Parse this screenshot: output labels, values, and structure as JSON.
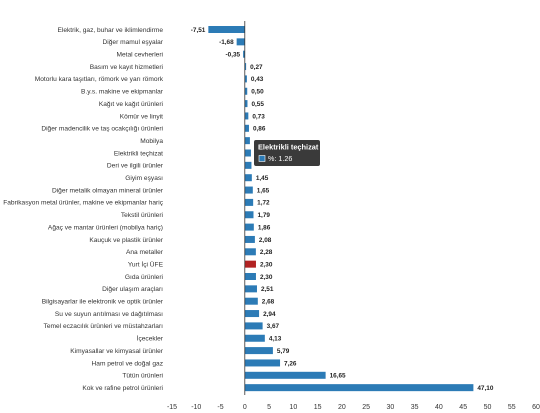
{
  "chart_data": {
    "type": "bar",
    "orientation": "horizontal",
    "categories": [
      "Elektrik, gaz, buhar ve iklimlendirme",
      "Diğer mamul eşyalar",
      "Metal cevherleri",
      "Basım ve kayıt hizmetleri",
      "Motorlu kara taşıtları, römork ve yarı römork",
      "B.y.s. makine ve ekipmanlar",
      "Kağıt ve kağıt ürünleri",
      "Kömür ve linyit",
      "Diğer madencilik ve taş ocakçılığı ürünleri",
      "Mobilya",
      "Elektrikli teçhizat",
      "Deri ve ilgili ürünler",
      "Giyim eşyası",
      "Diğer metalik olmayan mineral ürünler",
      "Fabrikasyon metal ürünler, makine ve ekipmanlar hariç",
      "Tekstil ürünleri",
      "Ağaç ve mantar ürünleri (mobilya hariç)",
      "Kauçuk ve plastik ürünler",
      "Ana metaller",
      "Yurt İçi ÜFE",
      "Gıda ürünleri",
      "Diğer ulaşım araçları",
      "Bilgisayarlar ile elektronik ve optik ürünler",
      "Su ve suyun arıtılması ve dağıtılması",
      "Temel eczacılık ürünleri ve müstahzarları",
      "İçecekler",
      "Kimyasallar ve kimyasal ürünler",
      "Ham petrol ve doğal gaz",
      "Tütün ürünleri",
      "Kok ve rafine petrol ürünleri"
    ],
    "values": [
      -7.51,
      -1.68,
      -0.35,
      0.27,
      0.43,
      0.5,
      0.55,
      0.73,
      0.86,
      1.05,
      1.26,
      1.37,
      1.45,
      1.65,
      1.72,
      1.79,
      1.86,
      2.08,
      2.28,
      2.3,
      2.3,
      2.51,
      2.68,
      2.94,
      3.67,
      4.13,
      5.79,
      7.26,
      16.65,
      47.1
    ],
    "value_labels": [
      "-7,51",
      "-1,68",
      "-0,35",
      "0,27",
      "0,43",
      "0,50",
      "0,55",
      "0,73",
      "0,86",
      "",
      "",
      "",
      "1,45",
      "1,65",
      "1,72",
      "1,79",
      "1,86",
      "2,08",
      "2,28",
      "2,30",
      "2,30",
      "2,51",
      "2,68",
      "2,94",
      "3,67",
      "4,13",
      "5,79",
      "7,26",
      "16,65",
      "47,10"
    ],
    "highlight_category": "Yurt İçi ÜFE",
    "xlim": [
      -15,
      60
    ],
    "xticks": [
      "-15",
      "-10",
      "-5",
      "0",
      "5",
      "10",
      "15",
      "20",
      "25",
      "30",
      "35",
      "40",
      "45",
      "50",
      "55",
      "60"
    ],
    "grid": false,
    "legend": "none",
    "title": "",
    "xlabel": "",
    "ylabel": "",
    "tooltip": {
      "category": "Elektrikli teçhizat",
      "title": "Elektrikli teçhizat",
      "label": "%: 1.26"
    },
    "colors": {
      "bar": "#2c7bb6",
      "highlight": "#b22222",
      "axis": "#333333"
    }
  }
}
